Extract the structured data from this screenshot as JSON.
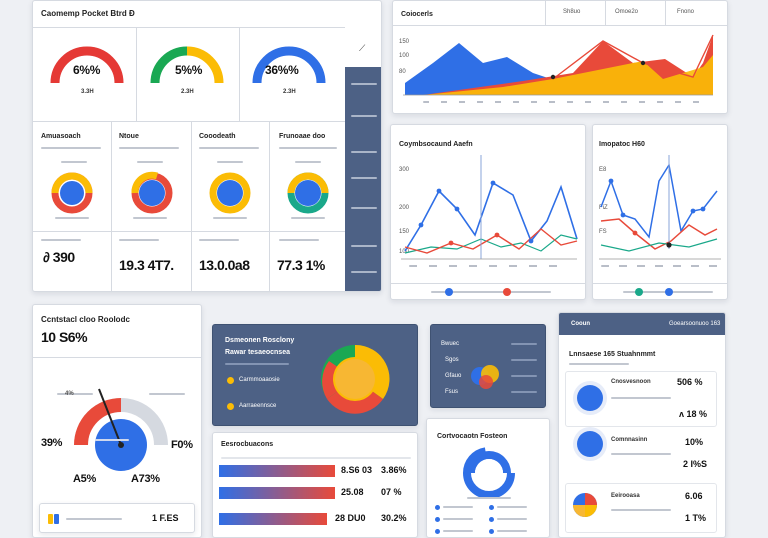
{
  "top_left_panel": {
    "title": "Caomemp Pocket Btrd Ð",
    "gauges": [
      {
        "value": "6%%",
        "sub": "3.3H",
        "color": "#e53935",
        "fill": 0.55
      },
      {
        "value": "5%%",
        "sub": "2.3H",
        "color": "#fbbc05",
        "fill": 0.65
      },
      {
        "value": "36%%",
        "sub": "2.3H",
        "color": "#2f6fe6",
        "fill": 0.75
      }
    ],
    "mini_cards": [
      {
        "title": "Amuasoach",
        "value": "∂ 390"
      },
      {
        "title": "Ntoue",
        "value": "19.3 4T7."
      },
      {
        "title": "Cooodeath",
        "value": "13.0.0a8"
      },
      {
        "title": "Frunoaae doo",
        "value": "77.3 1%"
      }
    ]
  },
  "area_chart": {
    "title": "Coiocerls",
    "tabs": [
      "Sh8uo",
      "Omoe2o",
      "Fnono"
    ],
    "colors": {
      "blue": "#2f6fe6",
      "orange": "#fbbc05",
      "red": "#e84a3a"
    }
  },
  "line_chart_a": {
    "title": "Coymbsocaund Aaefn",
    "y_ticks": [
      "300",
      "200",
      "150",
      "100"
    ],
    "colors": {
      "blue": "#2f6fe6",
      "red": "#e84a3a",
      "teal": "#1aa88a"
    }
  },
  "line_chart_b": {
    "title": "Imopatoc H60",
    "y_ticks": [
      "E8",
      "FiZ",
      "FS"
    ]
  },
  "big_gauge": {
    "title": "Ccntstacl cloo Roolodc",
    "value": "10 S6%",
    "left": "39%",
    "right": "F0%",
    "bottom_left": "A5%",
    "bottom_right": "A73%",
    "footer_value": "1 F.ES",
    "fill": 0.7
  },
  "donut_panel": {
    "title": "Dsmeonen Rosclony",
    "subtitle": "Rawar tesaeocnsea",
    "legend": [
      "Carmmoaaosie",
      "Aarraeennsce"
    ],
    "colors": [
      "#e84a3a",
      "#fbbc05",
      "#1aa88a"
    ]
  },
  "bars_panel": {
    "title": "Eesrocbuacons",
    "rows": [
      {
        "label": "8.S6 03",
        "pct": "3.86%",
        "fill": 0.9
      },
      {
        "label": "25.08",
        "pct": "07 %",
        "fill": 0.85
      },
      {
        "label": "28 DU0",
        "pct": "30.2%",
        "fill": 0.88
      }
    ]
  },
  "mini_dark_panel": {
    "items": [
      "Bwuec",
      "Sgos",
      "Gfauo",
      "Fsus"
    ]
  },
  "pie_panel": {
    "title": "Cortvocaotn Fosteon"
  },
  "stats_panel": {
    "header_left": "Cooun",
    "header_right": "Goearsoonuoo 163",
    "title": "Lnnsaese 165 Stuahnmmt",
    "rows": [
      {
        "label": "Cnosvesnoon",
        "value": "506 %"
      },
      {
        "label": "",
        "value": "ʌ 18 %"
      },
      {
        "label": "Comnnasinn",
        "value": "10%"
      },
      {
        "label": "",
        "value": "2 I%S"
      },
      {
        "label": "Eeirooasa",
        "value": "6.06"
      },
      {
        "label": "",
        "value": "1 T%"
      }
    ]
  }
}
